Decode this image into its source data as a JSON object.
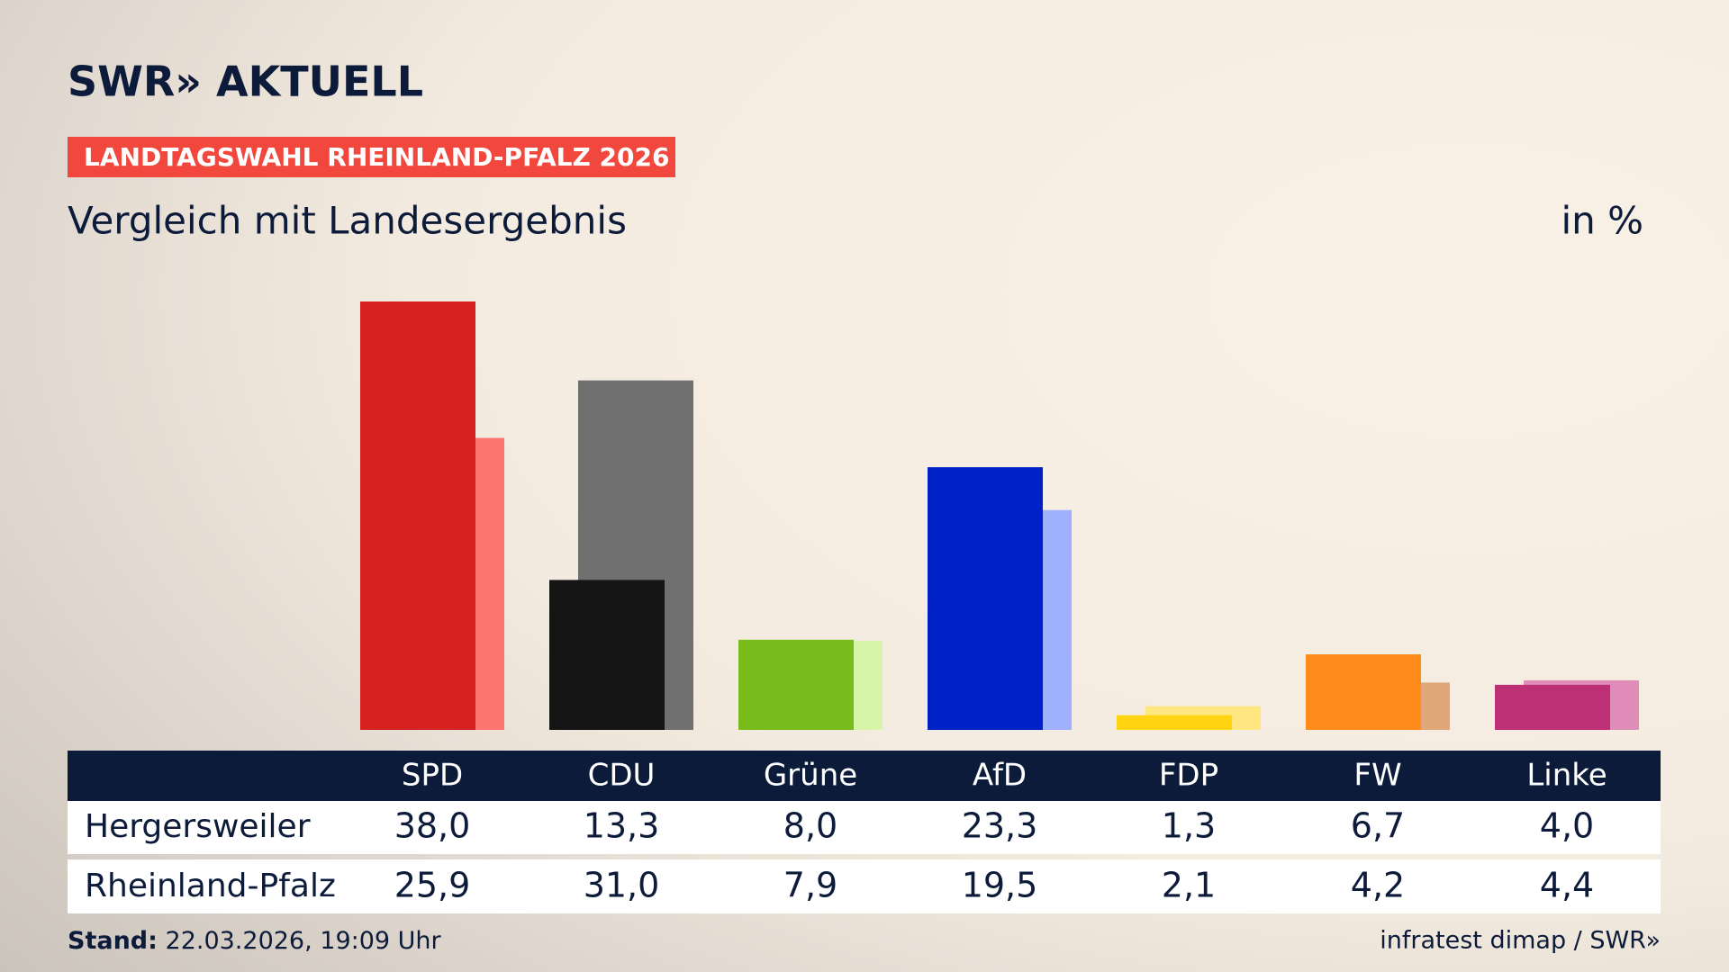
{
  "brand": "SWR» AKTUELL",
  "tag": "LANDTAGSWAHL RHEINLAND-PFALZ 2026",
  "footer": {
    "stand_label": "Stand:",
    "stand": "22.03.2026, 19:09 Uhr",
    "source": "infratest dimap / SWR»"
  },
  "chart_data": {
    "type": "bar",
    "title": "Vergleich mit Landesergebnis",
    "unit": "in %",
    "categories": [
      "SPD",
      "CDU",
      "Grüne",
      "AfD",
      "FDP",
      "FW",
      "Linke"
    ],
    "series": [
      {
        "name": "Hergersweiler",
        "colors": [
          "#d72020",
          "#141414",
          "#78bc1b",
          "#0020c8",
          "#ffd30f",
          "#ff8c1a",
          "#be3075"
        ],
        "values": [
          38.0,
          13.3,
          8.0,
          23.3,
          1.3,
          6.7,
          4.0
        ],
        "value_labels": [
          "38,0",
          "13,3",
          "8,0",
          "23,3",
          "1,3",
          "6,7",
          "4,0"
        ]
      },
      {
        "name": "Rheinland-Pfalz",
        "colors": [
          "#ff7570",
          "#707070",
          "#d6f5a8",
          "#9fb0ff",
          "#ffe680",
          "#e0a878",
          "#e08cb8"
        ],
        "values": [
          25.9,
          31.0,
          7.9,
          19.5,
          2.1,
          4.2,
          4.4
        ],
        "value_labels": [
          "25,9",
          "31,0",
          "7,9",
          "19,5",
          "2,1",
          "4,2",
          "4,4"
        ]
      }
    ]
  }
}
